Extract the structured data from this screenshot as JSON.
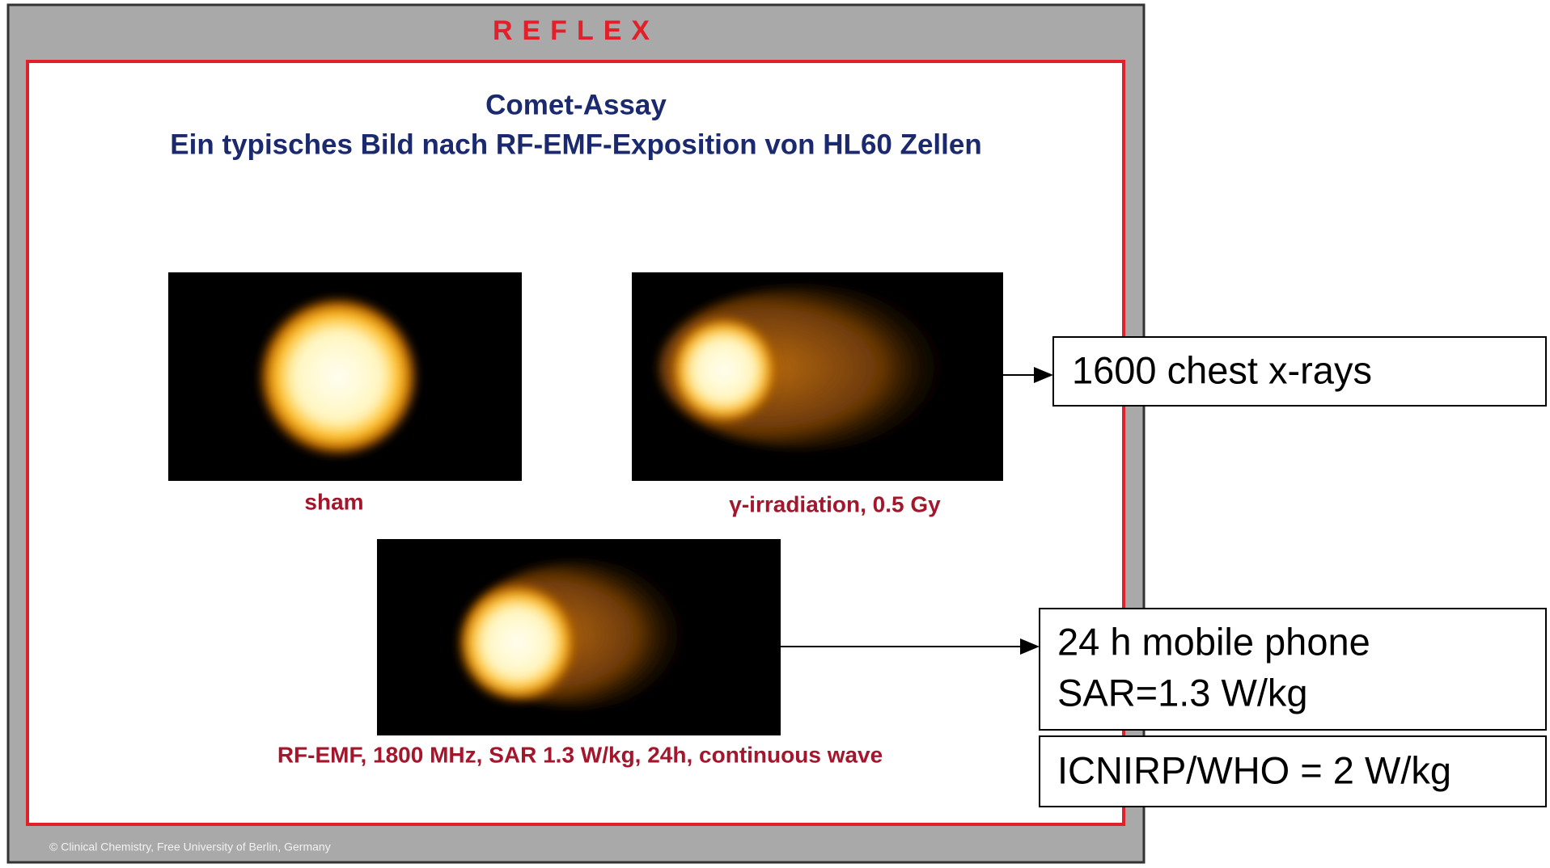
{
  "slide": {
    "header": "REFLEX",
    "title": "Comet-Assay",
    "subtitle": "Ein typisches Bild nach RF-EMF-Exposition von HL60 Zellen",
    "images": [
      {
        "caption": "sham"
      },
      {
        "caption": "γ-irradiation, 0.5 Gy"
      },
      {
        "caption": "RF-EMF, 1800 MHz, SAR 1.3 W/kg, 24h, continuous wave"
      }
    ],
    "footer": "© Clinical Chemistry, Free University of Berlin, Germany"
  },
  "annotations": [
    {
      "lines": [
        "1600 chest x-rays"
      ]
    },
    {
      "lines": [
        "24 h mobile phone",
        "SAR=1.3 W/kg"
      ]
    },
    {
      "lines": [
        "ICNIRP/WHO = 2 W/kg"
      ]
    }
  ]
}
